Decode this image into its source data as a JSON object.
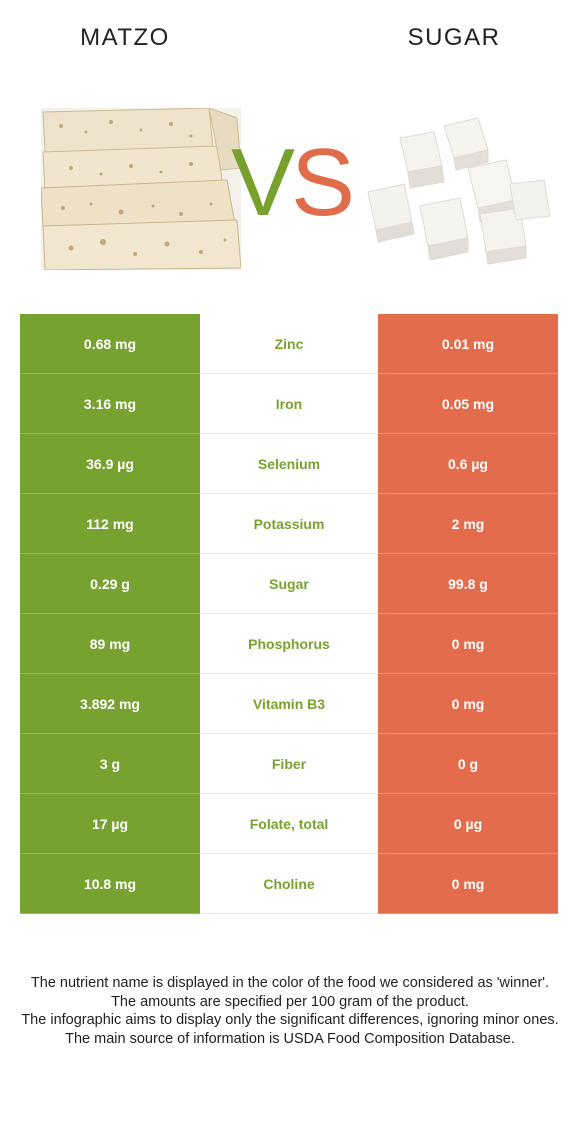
{
  "header": {
    "left_food": "MATZO",
    "right_food": "SUGAR",
    "vs_v": "V",
    "vs_s": "S"
  },
  "colors": {
    "winner_left": "#78a22f",
    "winner_right": "#e26c4b"
  },
  "rows": [
    {
      "left": "0.68 mg",
      "nutrient": "Zinc",
      "right": "0.01 mg"
    },
    {
      "left": "3.16 mg",
      "nutrient": "Iron",
      "right": "0.05 mg"
    },
    {
      "left": "36.9 µg",
      "nutrient": "Selenium",
      "right": "0.6 µg"
    },
    {
      "left": "112 mg",
      "nutrient": "Potassium",
      "right": "2 mg"
    },
    {
      "left": "0.29 g",
      "nutrient": "Sugar",
      "right": "99.8 g"
    },
    {
      "left": "89 mg",
      "nutrient": "Phosphorus",
      "right": "0 mg"
    },
    {
      "left": "3.892 mg",
      "nutrient": "Vitamin B3",
      "right": "0 mg"
    },
    {
      "left": "3 g",
      "nutrient": "Fiber",
      "right": "0 g"
    },
    {
      "left": "17 µg",
      "nutrient": "Folate, total",
      "right": "0 µg"
    },
    {
      "left": "10.8 mg",
      "nutrient": "Choline",
      "right": "0 mg"
    }
  ],
  "footnote": {
    "line1": "The nutrient name is displayed in the color of the food we considered as 'winner'.",
    "line2": "The amounts are specified per 100 gram of the product.",
    "line3": "The infographic aims to display only the significant differences, ignoring minor ones.",
    "line4": "The main source of information is USDA Food Composition Database."
  }
}
